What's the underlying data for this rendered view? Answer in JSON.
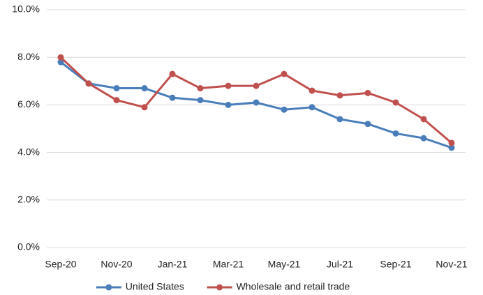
{
  "chart_data": {
    "type": "line",
    "categories": [
      "Sep-20",
      null,
      "Nov-20",
      null,
      "Jan-21",
      null,
      "Mar-21",
      null,
      "May-21",
      null,
      "Jul-21",
      null,
      "Sep-21",
      null,
      "Nov-21"
    ],
    "series": [
      {
        "name": "United States",
        "color": "#4a7ebb",
        "values": [
          7.8,
          6.9,
          6.7,
          6.7,
          6.3,
          6.2,
          6.0,
          6.1,
          5.8,
          5.9,
          5.4,
          5.2,
          4.8,
          4.6,
          4.2
        ]
      },
      {
        "name": "Wholesale and retail trade",
        "color": "#c0504d",
        "values": [
          8.0,
          6.9,
          6.2,
          5.9,
          7.3,
          6.7,
          6.8,
          6.8,
          7.3,
          6.6,
          6.4,
          6.5,
          6.1,
          5.4,
          4.4
        ]
      }
    ],
    "ylim": [
      0,
      10
    ],
    "yticks": [
      {
        "value": 0,
        "label": "0.0%"
      },
      {
        "value": 2,
        "label": "2.0%"
      },
      {
        "value": 4,
        "label": "4.0%"
      },
      {
        "value": 6,
        "label": "6.0%"
      },
      {
        "value": 8,
        "label": "8.0%"
      },
      {
        "value": 10,
        "label": "10.0%"
      }
    ],
    "grid": true,
    "legend": "bottom"
  }
}
